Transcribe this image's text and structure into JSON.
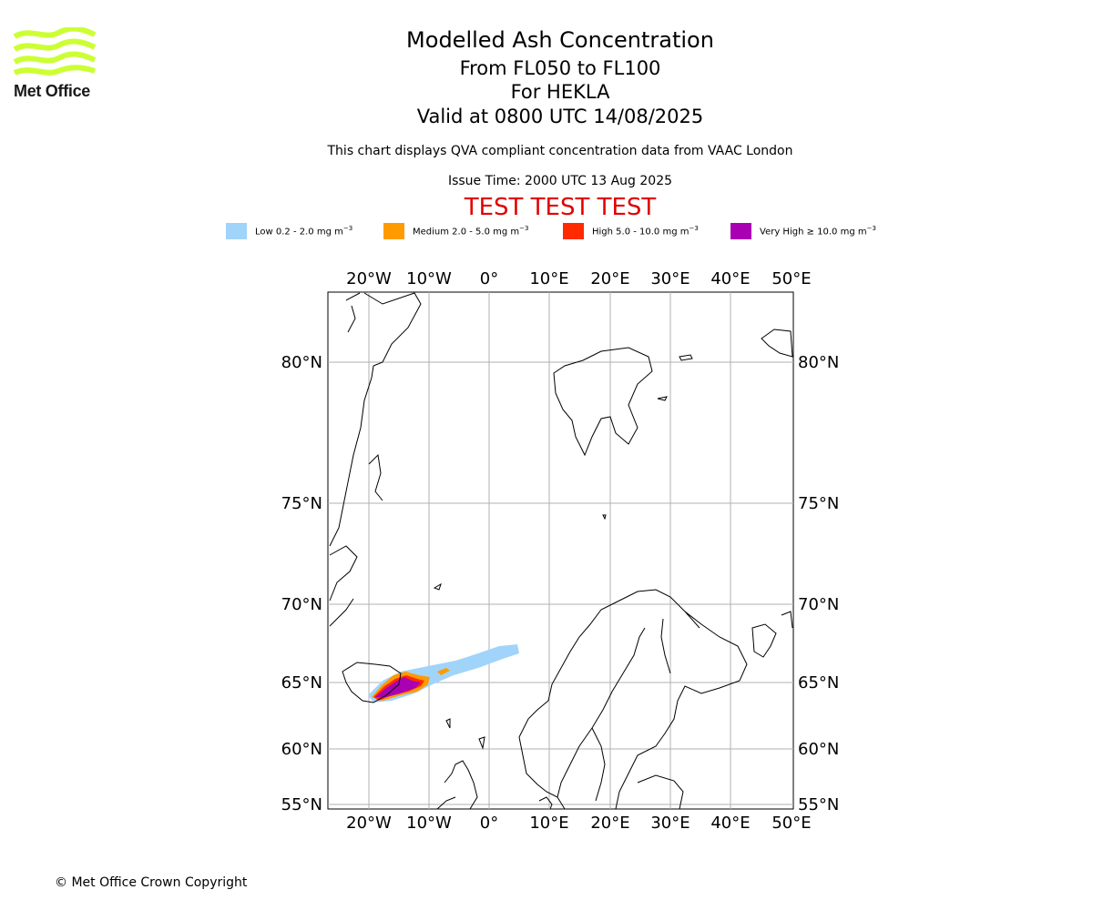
{
  "logo": {
    "text": "Met Office",
    "icon": "met-office-wave-logo",
    "color": "#ccff33"
  },
  "header": {
    "title": "Modelled Ash Concentration",
    "flight_levels": "From FL050 to FL100",
    "volcano": "For HEKLA",
    "valid_time": "Valid at 0800 UTC 14/08/2025",
    "description": "This chart displays QVA compliant concentration data from VAAC London",
    "issue_time": "Issue Time: 2000 UTC 13 Aug 2025",
    "test_banner": "TEST TEST TEST",
    "test_color": "#e00000"
  },
  "legend": [
    {
      "label": "Low 0.2 - 2.0 mg m",
      "unit_exp": "−3",
      "color": "#a0d4fa"
    },
    {
      "label": "Medium 2.0 - 5.0 mg m",
      "unit_exp": "−3",
      "color": "#ff9a00"
    },
    {
      "label": "High 5.0 - 10.0 mg m",
      "unit_exp": "−3",
      "color": "#ff2a00"
    },
    {
      "label": "Very High  ≥  10.0 mg m",
      "unit_exp": "−3",
      "color": "#aa00b4"
    }
  ],
  "map": {
    "lon_labels": [
      "20°W",
      "10°W",
      "0°",
      "10°E",
      "20°E",
      "30°E",
      "40°E",
      "50°E"
    ],
    "lat_labels": [
      "80°N",
      "75°N",
      "70°N",
      "65°N",
      "60°N",
      "55°N"
    ],
    "grid": true
  },
  "footer": {
    "copyright": "© Met Office Crown Copyright"
  }
}
